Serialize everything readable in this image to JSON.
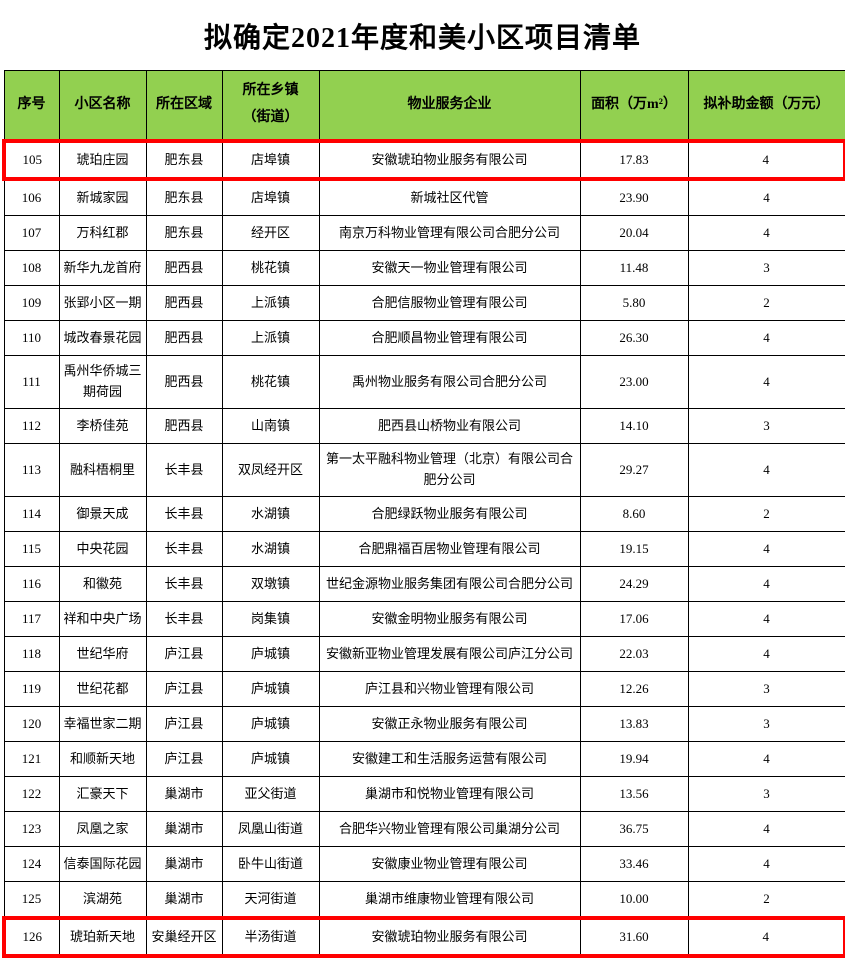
{
  "page": {
    "title": "拟确定2021年度和美小区项目清单"
  },
  "colors": {
    "header_bg": "#92D050",
    "highlight_border": "#FF0000",
    "grid": "#000000",
    "text": "#000000"
  },
  "table": {
    "headers": [
      "序号",
      "小区名称",
      "所在区域",
      "所在乡镇\n（街道）",
      "物业服务企业",
      "面积（万m²）",
      "拟补助金额（万元）"
    ],
    "rows": [
      {
        "serial": "105",
        "name": "琥珀庄园",
        "region": "肥东县",
        "town": "店埠镇",
        "company": "安徽琥珀物业服务有限公司",
        "area": "17.83",
        "subsidy": "4",
        "highlighted": true
      },
      {
        "serial": "106",
        "name": "新城家园",
        "region": "肥东县",
        "town": "店埠镇",
        "company": "新城社区代管",
        "area": "23.90",
        "subsidy": "4"
      },
      {
        "serial": "107",
        "name": "万科红郡",
        "region": "肥东县",
        "town": "经开区",
        "company": "南京万科物业管理有限公司合肥分公司",
        "area": "20.04",
        "subsidy": "4"
      },
      {
        "serial": "108",
        "name": "新华九龙首府",
        "region": "肥西县",
        "town": "桃花镇",
        "company": "安徽天一物业管理有限公司",
        "area": "11.48",
        "subsidy": "3"
      },
      {
        "serial": "109",
        "name": "张郢小区一期",
        "region": "肥西县",
        "town": "上派镇",
        "company": "合肥信服物业管理有限公司",
        "area": "5.80",
        "subsidy": "2"
      },
      {
        "serial": "110",
        "name": "城改春景花园",
        "region": "肥西县",
        "town": "上派镇",
        "company": "合肥顺昌物业管理有限公司",
        "area": "26.30",
        "subsidy": "4"
      },
      {
        "serial": "111",
        "name": "禹州华侨城三期荷园",
        "region": "肥西县",
        "town": "桃花镇",
        "company": "禹州物业服务有限公司合肥分公司",
        "area": "23.00",
        "subsidy": "4",
        "tall": true
      },
      {
        "serial": "112",
        "name": "李桥佳苑",
        "region": "肥西县",
        "town": "山南镇",
        "company": "肥西县山桥物业有限公司",
        "area": "14.10",
        "subsidy": "3"
      },
      {
        "serial": "113",
        "name": "融科梧桐里",
        "region": "长丰县",
        "town": "双凤经开区",
        "company": "第一太平融科物业管理（北京）有限公司合肥分公司",
        "area": "29.27",
        "subsidy": "4",
        "tall": true
      },
      {
        "serial": "114",
        "name": "御景天成",
        "region": "长丰县",
        "town": "水湖镇",
        "company": "合肥绿跃物业服务有限公司",
        "area": "8.60",
        "subsidy": "2"
      },
      {
        "serial": "115",
        "name": "中央花园",
        "region": "长丰县",
        "town": "水湖镇",
        "company": "合肥鼎福百居物业管理有限公司",
        "area": "19.15",
        "subsidy": "4"
      },
      {
        "serial": "116",
        "name": "和徽苑",
        "region": "长丰县",
        "town": "双墩镇",
        "company": "世纪金源物业服务集团有限公司合肥分公司",
        "area": "24.29",
        "subsidy": "4"
      },
      {
        "serial": "117",
        "name": "祥和中央广场",
        "region": "长丰县",
        "town": "岗集镇",
        "company": "安徽金明物业服务有限公司",
        "area": "17.06",
        "subsidy": "4"
      },
      {
        "serial": "118",
        "name": "世纪华府",
        "region": "庐江县",
        "town": "庐城镇",
        "company": "安徽新亚物业管理发展有限公司庐江分公司",
        "area": "22.03",
        "subsidy": "4"
      },
      {
        "serial": "119",
        "name": "世纪花都",
        "region": "庐江县",
        "town": "庐城镇",
        "company": "庐江县和兴物业管理有限公司",
        "area": "12.26",
        "subsidy": "3"
      },
      {
        "serial": "120",
        "name": "幸福世家二期",
        "region": "庐江县",
        "town": "庐城镇",
        "company": "安徽正永物业服务有限公司",
        "area": "13.83",
        "subsidy": "3"
      },
      {
        "serial": "121",
        "name": "和顺新天地",
        "region": "庐江县",
        "town": "庐城镇",
        "company": "安徽建工和生活服务运营有限公司",
        "area": "19.94",
        "subsidy": "4"
      },
      {
        "serial": "122",
        "name": "汇豪天下",
        "region": "巢湖市",
        "town": "亚父街道",
        "company": "巢湖市和悦物业管理有限公司",
        "area": "13.56",
        "subsidy": "3"
      },
      {
        "serial": "123",
        "name": "凤凰之家",
        "region": "巢湖市",
        "town": "凤凰山街道",
        "company": "合肥华兴物业管理有限公司巢湖分公司",
        "area": "36.75",
        "subsidy": "4"
      },
      {
        "serial": "124",
        "name": "信泰国际花园",
        "region": "巢湖市",
        "town": "卧牛山街道",
        "company": "安徽康业物业管理有限公司",
        "area": "33.46",
        "subsidy": "4"
      },
      {
        "serial": "125",
        "name": "滨湖苑",
        "region": "巢湖市",
        "town": "天河街道",
        "company": "巢湖市维康物业管理有限公司",
        "area": "10.00",
        "subsidy": "2"
      },
      {
        "serial": "126",
        "name": "琥珀新天地",
        "region": "安巢经开区",
        "town": "半汤街道",
        "company": "安徽琥珀物业服务有限公司",
        "area": "31.60",
        "subsidy": "4",
        "highlighted": true
      }
    ]
  }
}
